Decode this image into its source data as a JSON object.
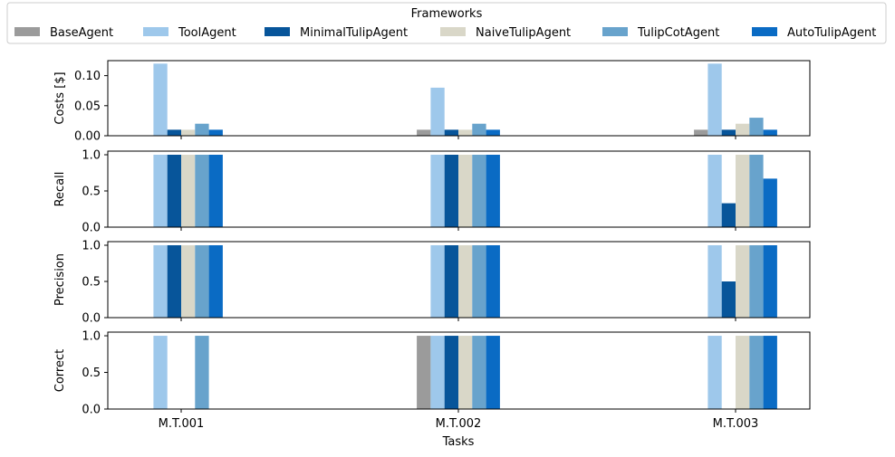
{
  "chart_data": {
    "type": "bar",
    "legend": {
      "title": "Frameworks",
      "placement": "top-center",
      "entries": [
        "BaseAgent",
        "ToolAgent",
        "MinimalTulipAgent",
        "NaiveTulipAgent",
        "TulipCotAgent",
        "AutoTulipAgent"
      ]
    },
    "colors": {
      "BaseAgent": "#9b9b9b",
      "ToolAgent": "#9ec8eb",
      "MinimalTulipAgent": "#07559a",
      "NaiveTulipAgent": "#d9d7c8",
      "TulipCotAgent": "#68a3cc",
      "AutoTulipAgent": "#0a6bc4"
    },
    "categories": [
      "M.T.001",
      "M.T.002",
      "M.T.003"
    ],
    "xlabel": "Tasks",
    "panels": [
      {
        "ylabel": "Costs [$]",
        "ylim": [
          0,
          0.125
        ],
        "yticks": [
          0.0,
          0.05,
          0.1
        ],
        "ytick_labels": [
          "0.00",
          "0.05",
          "0.10"
        ],
        "series": [
          {
            "name": "BaseAgent",
            "values": [
              0,
              0.01,
              0.01
            ]
          },
          {
            "name": "ToolAgent",
            "values": [
              0.12,
              0.08,
              0.12
            ]
          },
          {
            "name": "MinimalTulipAgent",
            "values": [
              0.01,
              0.01,
              0.01
            ]
          },
          {
            "name": "NaiveTulipAgent",
            "values": [
              0.01,
              0.01,
              0.02
            ]
          },
          {
            "name": "TulipCotAgent",
            "values": [
              0.02,
              0.02,
              0.03
            ]
          },
          {
            "name": "AutoTulipAgent",
            "values": [
              0.01,
              0.01,
              0.01
            ]
          }
        ]
      },
      {
        "ylabel": "Recall",
        "ylim": [
          0,
          1.05
        ],
        "yticks": [
          0.0,
          0.5,
          1.0
        ],
        "ytick_labels": [
          "0.0",
          "0.5",
          "1.0"
        ],
        "series": [
          {
            "name": "BaseAgent",
            "values": [
              0,
              0,
              0
            ]
          },
          {
            "name": "ToolAgent",
            "values": [
              1,
              1,
              1
            ]
          },
          {
            "name": "MinimalTulipAgent",
            "values": [
              1,
              1,
              0.33
            ]
          },
          {
            "name": "NaiveTulipAgent",
            "values": [
              1,
              1,
              1
            ]
          },
          {
            "name": "TulipCotAgent",
            "values": [
              1,
              1,
              1
            ]
          },
          {
            "name": "AutoTulipAgent",
            "values": [
              1,
              1,
              0.67
            ]
          }
        ]
      },
      {
        "ylabel": "Precision",
        "ylim": [
          0,
          1.05
        ],
        "yticks": [
          0.0,
          0.5,
          1.0
        ],
        "ytick_labels": [
          "0.0",
          "0.5",
          "1.0"
        ],
        "series": [
          {
            "name": "BaseAgent",
            "values": [
              0,
              0,
              0
            ]
          },
          {
            "name": "ToolAgent",
            "values": [
              1,
              1,
              1
            ]
          },
          {
            "name": "MinimalTulipAgent",
            "values": [
              1,
              1,
              0.5
            ]
          },
          {
            "name": "NaiveTulipAgent",
            "values": [
              1,
              1,
              1
            ]
          },
          {
            "name": "TulipCotAgent",
            "values": [
              1,
              1,
              1
            ]
          },
          {
            "name": "AutoTulipAgent",
            "values": [
              1,
              1,
              1
            ]
          }
        ]
      },
      {
        "ylabel": "Correct",
        "ylim": [
          0,
          1.05
        ],
        "yticks": [
          0.0,
          0.5,
          1.0
        ],
        "ytick_labels": [
          "0.0",
          "0.5",
          "1.0"
        ],
        "series": [
          {
            "name": "BaseAgent",
            "values": [
              0,
              1,
              0
            ]
          },
          {
            "name": "ToolAgent",
            "values": [
              1,
              1,
              1
            ]
          },
          {
            "name": "MinimalTulipAgent",
            "values": [
              0,
              1,
              0
            ]
          },
          {
            "name": "NaiveTulipAgent",
            "values": [
              0,
              1,
              1
            ]
          },
          {
            "name": "TulipCotAgent",
            "values": [
              1,
              1,
              1
            ]
          },
          {
            "name": "AutoTulipAgent",
            "values": [
              0,
              1,
              1
            ]
          }
        ]
      }
    ]
  }
}
